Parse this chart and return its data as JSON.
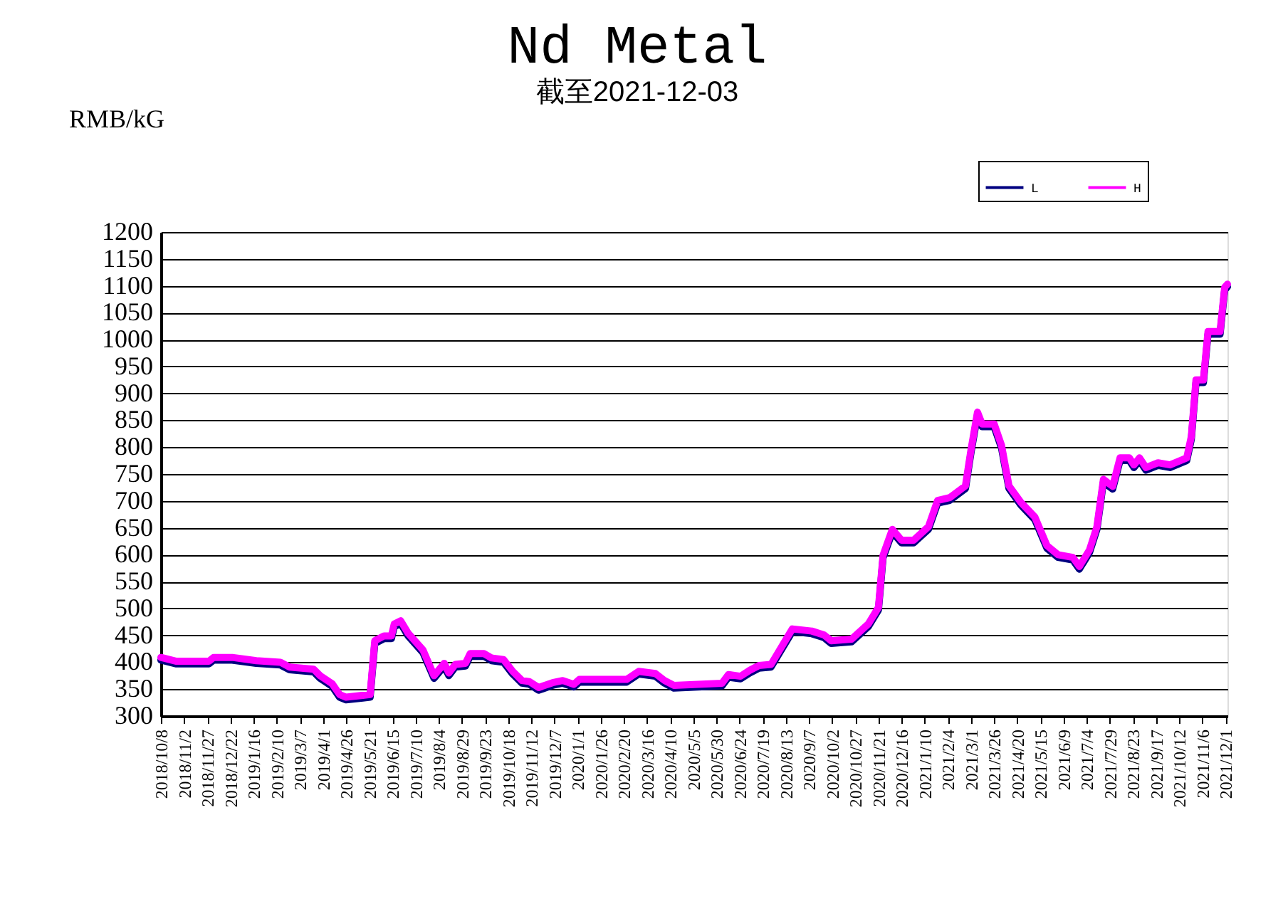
{
  "chart_data": {
    "type": "line",
    "title": "Nd Metal",
    "subtitle": "截至2021-12-03",
    "ylabel": "RMB/kG",
    "ylim": [
      300,
      1200
    ],
    "yticks": [
      300,
      350,
      400,
      450,
      500,
      550,
      600,
      650,
      700,
      750,
      800,
      850,
      900,
      950,
      1000,
      1050,
      1100,
      1150,
      1200
    ],
    "xlim": [
      "2018-10-08",
      "2021-12-03"
    ],
    "xticks": [
      {
        "value": "2018-10-08",
        "label": "2018/10/8"
      },
      {
        "value": "2018-11-02",
        "label": "2018/11/2"
      },
      {
        "value": "2018-11-27",
        "label": "2018/11/27"
      },
      {
        "value": "2018-12-22",
        "label": "2018/12/22"
      },
      {
        "value": "2019-01-16",
        "label": "2019/1/16"
      },
      {
        "value": "2019-02-10",
        "label": "2019/2/10"
      },
      {
        "value": "2019-03-07",
        "label": "2019/3/7"
      },
      {
        "value": "2019-04-01",
        "label": "2019/4/1"
      },
      {
        "value": "2019-04-26",
        "label": "2019/4/26"
      },
      {
        "value": "2019-05-21",
        "label": "2019/5/21"
      },
      {
        "value": "2019-06-15",
        "label": "2019/6/15"
      },
      {
        "value": "2019-07-10",
        "label": "2019/7/10"
      },
      {
        "value": "2019-08-04",
        "label": "2019/8/4"
      },
      {
        "value": "2019-08-29",
        "label": "2019/8/29"
      },
      {
        "value": "2019-09-23",
        "label": "2019/9/23"
      },
      {
        "value": "2019-10-18",
        "label": "2019/10/18"
      },
      {
        "value": "2019-11-12",
        "label": "2019/11/12"
      },
      {
        "value": "2019-12-07",
        "label": "2019/12/7"
      },
      {
        "value": "2020-01-01",
        "label": "2020/1/1"
      },
      {
        "value": "2020-01-26",
        "label": "2020/1/26"
      },
      {
        "value": "2020-02-20",
        "label": "2020/2/20"
      },
      {
        "value": "2020-03-16",
        "label": "2020/3/16"
      },
      {
        "value": "2020-04-10",
        "label": "2020/4/10"
      },
      {
        "value": "2020-05-05",
        "label": "2020/5/5"
      },
      {
        "value": "2020-05-30",
        "label": "2020/5/30"
      },
      {
        "value": "2020-06-24",
        "label": "2020/6/24"
      },
      {
        "value": "2020-07-19",
        "label": "2020/7/19"
      },
      {
        "value": "2020-08-13",
        "label": "2020/8/13"
      },
      {
        "value": "2020-09-07",
        "label": "2020/9/7"
      },
      {
        "value": "2020-10-02",
        "label": "2020/10/2"
      },
      {
        "value": "2020-10-27",
        "label": "2020/10/27"
      },
      {
        "value": "2020-11-21",
        "label": "2020/11/21"
      },
      {
        "value": "2020-12-16",
        "label": "2020/12/16"
      },
      {
        "value": "2021-01-10",
        "label": "2021/1/10"
      },
      {
        "value": "2021-02-04",
        "label": "2021/2/4"
      },
      {
        "value": "2021-03-01",
        "label": "2021/3/1"
      },
      {
        "value": "2021-03-26",
        "label": "2021/3/26"
      },
      {
        "value": "2021-04-20",
        "label": "2021/4/20"
      },
      {
        "value": "2021-05-15",
        "label": "2021/5/15"
      },
      {
        "value": "2021-06-09",
        "label": "2021/6/9"
      },
      {
        "value": "2021-07-04",
        "label": "2021/7/4"
      },
      {
        "value": "2021-07-29",
        "label": "2021/7/29"
      },
      {
        "value": "2021-08-23",
        "label": "2021/8/23"
      },
      {
        "value": "2021-09-17",
        "label": "2021/9/17"
      },
      {
        "value": "2021-10-12",
        "label": "2021/10/12"
      },
      {
        "value": "2021-11-06",
        "label": "2021/11/6"
      },
      {
        "value": "2021-12-01",
        "label": "2021/12/1"
      }
    ],
    "x": [
      "2018-10-08",
      "2018-10-24",
      "2018-11-29",
      "2018-12-04",
      "2018-12-24",
      "2019-01-19",
      "2019-02-14",
      "2019-02-24",
      "2019-03-22",
      "2019-03-29",
      "2019-04-11",
      "2019-04-19",
      "2019-04-26",
      "2019-05-22",
      "2019-05-27",
      "2019-06-06",
      "2019-06-14",
      "2019-06-17",
      "2019-06-24",
      "2019-07-02",
      "2019-07-18",
      "2019-07-30",
      "2019-08-10",
      "2019-08-15",
      "2019-08-22",
      "2019-09-02",
      "2019-09-07",
      "2019-09-22",
      "2019-09-30",
      "2019-10-13",
      "2019-10-23",
      "2019-11-02",
      "2019-11-10",
      "2019-11-20",
      "2019-12-05",
      "2019-12-16",
      "2019-12-28",
      "2020-01-03",
      "2020-02-23",
      "2020-03-07",
      "2020-03-25",
      "2020-04-04",
      "2020-04-14",
      "2020-06-05",
      "2020-06-12",
      "2020-06-25",
      "2020-07-05",
      "2020-07-15",
      "2020-07-28",
      "2020-08-20",
      "2020-09-10",
      "2020-09-23",
      "2020-10-01",
      "2020-10-23",
      "2020-11-10",
      "2020-11-21",
      "2020-11-26",
      "2020-12-06",
      "2020-12-16",
      "2020-12-29",
      "2021-01-14",
      "2021-01-24",
      "2021-02-06",
      "2021-02-23",
      "2021-03-01",
      "2021-03-08",
      "2021-03-13",
      "2021-03-26",
      "2021-04-03",
      "2021-04-11",
      "2021-04-24",
      "2021-05-09",
      "2021-05-22",
      "2021-06-03",
      "2021-06-19",
      "2021-06-26",
      "2021-07-07",
      "2021-07-15",
      "2021-07-22",
      "2021-08-01",
      "2021-08-09",
      "2021-08-19",
      "2021-08-24",
      "2021-08-30",
      "2021-09-06",
      "2021-09-19",
      "2021-10-02",
      "2021-10-20",
      "2021-10-25",
      "2021-10-30",
      "2021-11-07",
      "2021-11-12",
      "2021-11-25",
      "2021-11-30",
      "2021-12-03"
    ],
    "series": [
      {
        "name": "L",
        "color": "#000080",
        "type": "line",
        "values": [
          404,
          397,
          397,
          404,
          404,
          398,
          395,
          386,
          382,
          370,
          355,
          335,
          330,
          335,
          435,
          444,
          444,
          466,
          472,
          449,
          418,
          370,
          393,
          375,
          391,
          393,
          411,
          411,
          403,
          400,
          378,
          361,
          359,
          348,
          357,
          361,
          354,
          363,
          363,
          378,
          374,
          361,
          352,
          356,
          372,
          369,
          380,
          389,
          391,
          457,
          453,
          446,
          435,
          438,
          466,
          497,
          594,
          642,
          622,
          622,
          647,
          696,
          701,
          723,
          790,
          860,
          838,
          838,
          798,
          723,
          692,
          665,
          612,
          595,
          590,
          573,
          604,
          647,
          735,
          722,
          775,
          775,
          762,
          775,
          757,
          766,
          762,
          775,
          815,
          920,
          920,
          1010,
          1010,
          1092,
          1098
        ]
      },
      {
        "name": "H",
        "color": "#ff00ff",
        "type": "line",
        "values": [
          409,
          402,
          402,
          409,
          409,
          403,
          400,
          391,
          387,
          375,
          360,
          340,
          335,
          340,
          440,
          449,
          449,
          471,
          477,
          454,
          423,
          375,
          398,
          380,
          396,
          398,
          416,
          416,
          408,
          405,
          383,
          366,
          364,
          353,
          362,
          366,
          359,
          368,
          368,
          383,
          379,
          366,
          357,
          361,
          377,
          374,
          385,
          394,
          396,
          462,
          458,
          451,
          440,
          443,
          471,
          502,
          599,
          647,
          627,
          627,
          652,
          701,
          706,
          728,
          795,
          865,
          843,
          843,
          803,
          728,
          697,
          670,
          617,
          600,
          595,
          578,
          609,
          652,
          740,
          727,
          780,
          780,
          767,
          780,
          762,
          771,
          767,
          780,
          820,
          925,
          925,
          1015,
          1015,
          1097,
          1103
        ]
      }
    ],
    "grid": "y",
    "legend": "top right",
    "marker": "none",
    "line_style": "solid"
  }
}
